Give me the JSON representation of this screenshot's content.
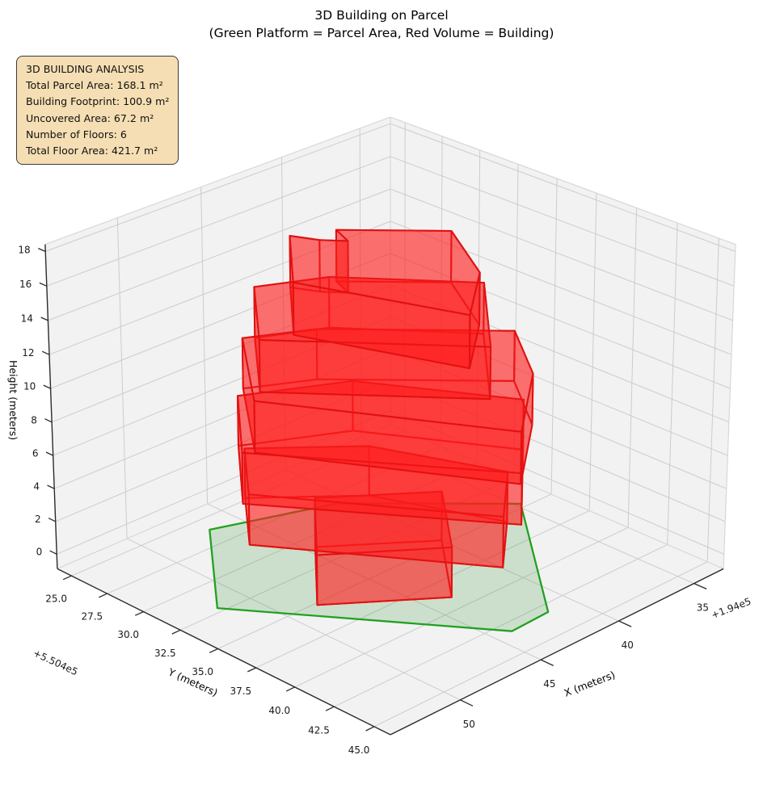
{
  "title": {
    "line1": "3D Building on Parcel",
    "line2": "(Green Platform = Parcel Area, Red Volume = Building)"
  },
  "info_box": {
    "heading": "3D BUILDING ANALYSIS",
    "lines": [
      "Total Parcel Area: 168.1 m²",
      "Building Footprint: 100.9 m²",
      "Uncovered Area: 67.2 m²",
      "Number of Floors: 6",
      "Total Floor Area: 421.7 m²"
    ]
  },
  "chart_data": {
    "type": "3d-building-plot",
    "stats": {
      "total_parcel_area_m2": 168.1,
      "building_footprint_m2": 100.9,
      "uncovered_area_m2": 67.2,
      "number_of_floors": 6,
      "total_floor_area_m2": 421.7
    },
    "axes": {
      "x": {
        "label": "X (meters)",
        "offset_text": "+1.94e5",
        "tick_values": [
          35,
          40,
          45,
          50
        ],
        "tick_labels": [
          "35",
          "40",
          "45",
          "50"
        ],
        "range": [
          33.0,
          54.2
        ]
      },
      "y": {
        "label": "Y (meters)",
        "offset_text": "+5.504e5",
        "tick_values": [
          25,
          27.5,
          30,
          32.5,
          35,
          37.5,
          40,
          42.5,
          45
        ],
        "tick_labels": [
          "25.0",
          "27.5",
          "30.0",
          "32.5",
          "35.0",
          "37.5",
          "40.0",
          "42.5",
          "45.0"
        ],
        "range": [
          24.0,
          46.0
        ]
      },
      "z": {
        "label": "Height (meters)",
        "offset_text": "",
        "tick_values": [
          0,
          2,
          4,
          6,
          8,
          10,
          12,
          14,
          16,
          18
        ],
        "tick_labels": [
          "0",
          "2",
          "4",
          "6",
          "8",
          "10",
          "12",
          "14",
          "16",
          "18"
        ],
        "range": [
          -0.9,
          18.4
        ]
      }
    },
    "parcel": {
      "z": 0,
      "polygon": [
        [
          47.7,
          27.2
        ],
        [
          52.6,
          33.2
        ],
        [
          45.0,
          44.2
        ],
        [
          42.6,
          44.1
        ],
        [
          35.8,
          35.7
        ],
        [
          41.7,
          29.5
        ]
      ]
    },
    "building": {
      "num_floors": 6,
      "floor_height_m": 3,
      "floors": [
        {
          "z0": 0,
          "z1": 3,
          "footprint": [
            [
              45.5,
              32.0
            ],
            [
              49.3,
              36.2
            ],
            [
              44.6,
              40.0
            ],
            [
              41.0,
              35.7
            ]
          ]
        },
        {
          "z0": 3,
          "z1": 6,
          "footprint": [
            [
              47.7,
              29.7
            ],
            [
              50.7,
              33.3
            ],
            [
              44.4,
              43.0
            ],
            [
              41.1,
              40.0
            ],
            [
              43.6,
              33.6
            ]
          ]
        },
        {
          "z0": 6,
          "z1": 9,
          "footprint": [
            [
              47.7,
              29.3
            ],
            [
              51.5,
              33.8
            ],
            [
              44.4,
              44.1
            ],
            [
              39.0,
              38.9
            ],
            [
              43.0,
              31.9
            ]
          ]
        },
        {
          "z0": 9,
          "z1": 12,
          "footprint": [
            [
              47.0,
              28.9
            ],
            [
              51.1,
              34.2
            ],
            [
              45.2,
              44.8
            ],
            [
              40.6,
              41.0
            ],
            [
              37.9,
              37.2
            ],
            [
              44.0,
              30.6
            ]
          ]
        },
        {
          "z0": 12,
          "z1": 15,
          "footprint": [
            [
              46.6,
              29.3
            ],
            [
              50.3,
              33.7
            ],
            [
              43.8,
              41.5
            ],
            [
              39.1,
              36.4
            ],
            [
              43.5,
              30.9
            ]
          ]
        },
        {
          "z0": 15,
          "z1": 18,
          "footprint": [
            [
              45.5,
              30.5
            ],
            [
              48.9,
              34.4
            ],
            [
              46.0,
              42.4
            ],
            [
              42.5,
              39.5
            ],
            [
              40.1,
              35.3
            ],
            [
              43.6,
              31.5
            ],
            [
              44.1,
              32.8
            ],
            [
              44.9,
              31.8
            ]
          ]
        }
      ]
    },
    "colors": {
      "parcel_edge": "#21a121",
      "parcel_fill": "rgba(34,139,34,0.18)",
      "building_edge": "#e01111",
      "building_fill": "rgba(255,30,30,0.38)",
      "pane": "#f2f2f2",
      "pane_edge": "#d5d5d5",
      "grid": "#cccccc",
      "spine": "#2b2b2b",
      "tick_text": "#1a1a1a",
      "info_box_bg": "#f5deb3"
    },
    "view": {
      "elev_deg": 25.5,
      "azim_deg": 45,
      "projection": "persp"
    }
  }
}
